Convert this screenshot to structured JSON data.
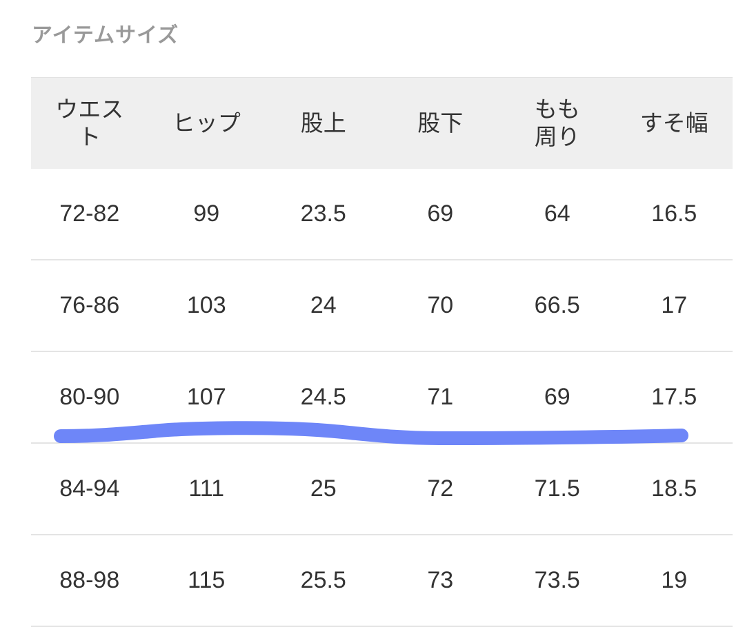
{
  "section_title": "アイテムサイズ",
  "table": {
    "headers": [
      "ウエスト",
      "ヒップ",
      "股上",
      "股下",
      "もも周り",
      "すそ幅"
    ],
    "rows": [
      [
        "72-82",
        "99",
        "23.5",
        "69",
        "64",
        "16.5"
      ],
      [
        "76-86",
        "103",
        "24",
        "70",
        "66.5",
        "17"
      ],
      [
        "80-90",
        "107",
        "24.5",
        "71",
        "69",
        "17.5"
      ],
      [
        "84-94",
        "111",
        "25",
        "72",
        "71.5",
        "18.5"
      ],
      [
        "88-98",
        "115",
        "25.5",
        "73",
        "73.5",
        "19"
      ]
    ]
  },
  "annotation": {
    "type": "highlighter-stroke",
    "color": "#6680f8"
  }
}
